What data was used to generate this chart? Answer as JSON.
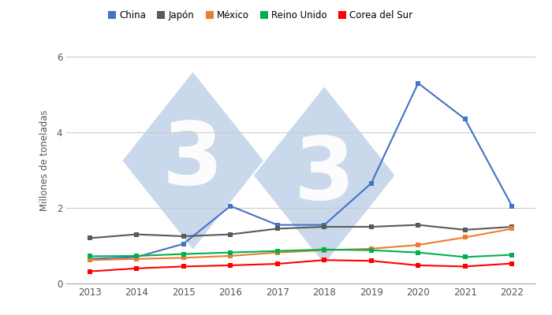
{
  "years": [
    2013,
    2014,
    2015,
    2016,
    2017,
    2018,
    2019,
    2020,
    2021,
    2022
  ],
  "series": {
    "China": {
      "values": [
        0.65,
        0.7,
        1.05,
        2.05,
        1.55,
        1.55,
        2.65,
        5.3,
        4.35,
        2.05
      ],
      "color": "#4472C4"
    },
    "Japón": {
      "values": [
        1.2,
        1.3,
        1.25,
        1.3,
        1.45,
        1.5,
        1.5,
        1.55,
        1.42,
        1.5
      ],
      "color": "#5A5A5A"
    },
    "México": {
      "values": [
        0.62,
        0.65,
        0.68,
        0.73,
        0.82,
        0.88,
        0.92,
        1.02,
        1.22,
        1.45
      ],
      "color": "#ED7D31"
    },
    "Reino Unido": {
      "values": [
        0.72,
        0.73,
        0.78,
        0.82,
        0.86,
        0.9,
        0.88,
        0.82,
        0.7,
        0.76
      ],
      "color": "#00B050"
    },
    "Corea del Sur": {
      "values": [
        0.32,
        0.4,
        0.45,
        0.48,
        0.52,
        0.62,
        0.6,
        0.48,
        0.45,
        0.53
      ],
      "color": "#FF0000"
    }
  },
  "ylabel": "Millones de toneladas",
  "ylim": [
    0,
    6.5
  ],
  "yticks": [
    0,
    2,
    4,
    6
  ],
  "xlim": [
    2012.5,
    2022.5
  ],
  "background_color": "#FFFFFF",
  "grid_color": "#CCCCCC",
  "watermark_color": "#C9D9EB",
  "legend_order": [
    "China",
    "Japón",
    "México",
    "Reino Unido",
    "Corea del Sur"
  ]
}
